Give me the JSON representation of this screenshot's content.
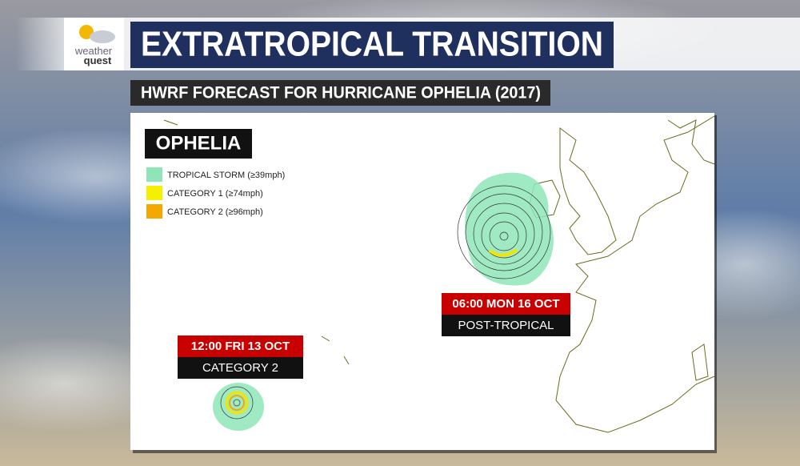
{
  "header": {
    "logo": {
      "line1": "weather",
      "line2": "quest"
    },
    "title": "EXTRATROPICAL TRANSITION",
    "subtitle": "HWRF FORECAST FOR HURRICANE OPHELIA (2017)"
  },
  "map": {
    "storm_name": "OPHELIA",
    "legend": [
      "TROPICAL STORM (≥39mph)",
      "CATEGORY 1 (≥74mph)",
      "CATEGORY 2 (≥96mph)"
    ],
    "labels": [
      {
        "time": "12:00 FRI 13 OCT",
        "status": "CATEGORY 2"
      },
      {
        "time": "06:00 MON 16 OCT",
        "status": "POST-TROPICAL"
      }
    ]
  }
}
